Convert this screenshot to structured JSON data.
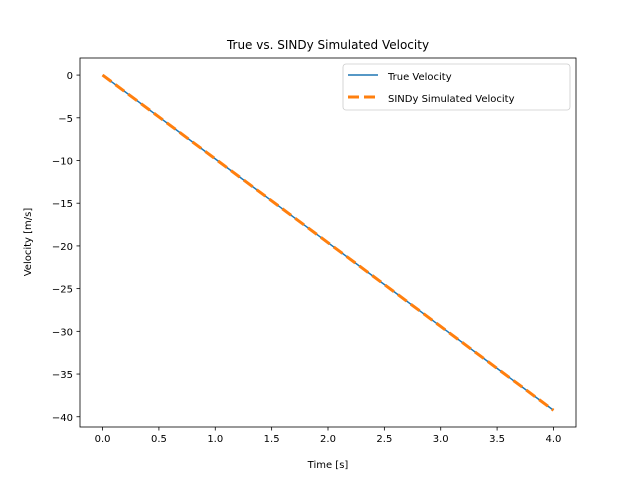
{
  "chart_data": {
    "type": "line",
    "title": "True vs. SINDy Simulated Velocity",
    "xlabel": "Time [s]",
    "ylabel": "Velocity [m/s]",
    "xlim": [
      -0.2,
      4.2
    ],
    "ylim": [
      -41.2,
      2.0
    ],
    "xticks": [
      0.0,
      0.5,
      1.0,
      1.5,
      2.0,
      2.5,
      3.0,
      3.5,
      4.0
    ],
    "xtick_labels": [
      "0.0",
      "0.5",
      "1.0",
      "1.5",
      "2.0",
      "2.5",
      "3.0",
      "3.5",
      "4.0"
    ],
    "yticks": [
      0,
      -5,
      -10,
      -15,
      -20,
      -25,
      -30,
      -35,
      -40
    ],
    "ytick_labels": [
      "0",
      "−5",
      "−10",
      "−15",
      "−20",
      "−25",
      "−30",
      "−35",
      "−40"
    ],
    "grid": false,
    "legend_position": "top-right",
    "series": [
      {
        "name": "True Velocity",
        "color": "#1f77b4",
        "style": "solid",
        "x": [
          0.0,
          0.5,
          1.0,
          1.5,
          2.0,
          2.5,
          3.0,
          3.5,
          4.0
        ],
        "y": [
          0.0,
          -4.9,
          -9.81,
          -14.72,
          -19.62,
          -24.52,
          -29.43,
          -34.34,
          -39.24
        ]
      },
      {
        "name": "SINDy Simulated Velocity",
        "color": "#ff7f0e",
        "style": "dashed",
        "x": [
          0.0,
          0.5,
          1.0,
          1.5,
          2.0,
          2.5,
          3.0,
          3.5,
          4.0
        ],
        "y": [
          0.0,
          -4.9,
          -9.81,
          -14.72,
          -19.62,
          -24.52,
          -29.43,
          -34.34,
          -39.24
        ]
      }
    ]
  }
}
